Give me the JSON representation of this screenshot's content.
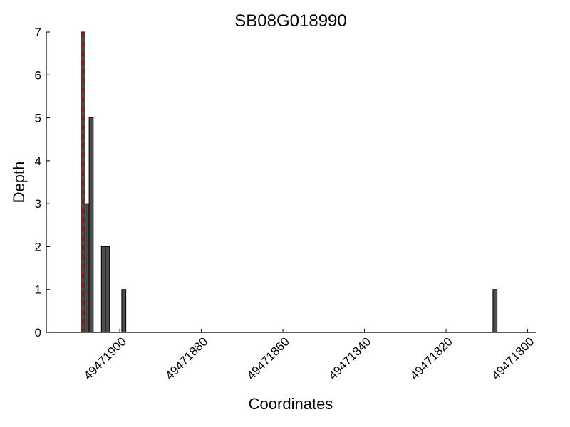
{
  "chart_data": {
    "type": "bar",
    "title": "SB08G018990",
    "xlabel": "Coordinates",
    "ylabel": "Depth",
    "x_reversed": true,
    "xlim": [
      49471918,
      49471798
    ],
    "ylim": [
      0,
      7
    ],
    "xticks": [
      49471900,
      49471880,
      49471860,
      49471840,
      49471820,
      49471800
    ],
    "yticks": [
      0,
      1,
      2,
      3,
      4,
      5,
      6,
      7
    ],
    "bar_width": 1,
    "bars": [
      {
        "x": 49471909,
        "y": 7
      },
      {
        "x": 49471908,
        "y": 3
      },
      {
        "x": 49471907,
        "y": 5
      },
      {
        "x": 49471904,
        "y": 2
      },
      {
        "x": 49471903,
        "y": 2
      },
      {
        "x": 49471899,
        "y": 1
      },
      {
        "x": 49471808,
        "y": 1
      }
    ],
    "marker_line": {
      "x": 49471909,
      "style": "dashed",
      "color": "#cc0000"
    },
    "bar_color": "#4d4d4d",
    "bar_edge_color": "#000000",
    "grid": false,
    "legend": "none"
  }
}
